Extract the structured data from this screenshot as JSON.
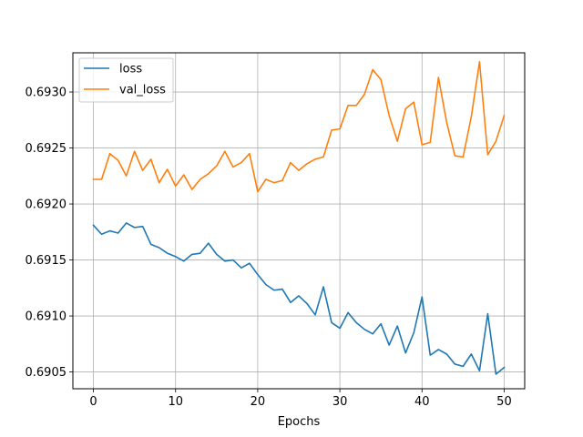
{
  "chart_data": {
    "type": "line",
    "title": "",
    "xlabel": "Epochs",
    "ylabel": "",
    "xlim": [
      -2.5,
      52.5
    ],
    "ylim": [
      0.69035,
      0.69335
    ],
    "grid": true,
    "legend_position": "upper-left",
    "x_ticks": [
      0,
      10,
      20,
      30,
      40,
      50
    ],
    "x_tick_labels": [
      "0",
      "10",
      "20",
      "30",
      "40",
      "50"
    ],
    "y_ticks": [
      0.6905,
      0.691,
      0.6915,
      0.692,
      0.6925,
      0.693
    ],
    "y_tick_labels": [
      "0.6905",
      "0.6910",
      "0.6915",
      "0.6920",
      "0.6925",
      "0.6930"
    ],
    "x": [
      0,
      1,
      2,
      3,
      4,
      5,
      6,
      7,
      8,
      9,
      10,
      11,
      12,
      13,
      14,
      15,
      16,
      17,
      18,
      19,
      20,
      21,
      22,
      23,
      24,
      25,
      26,
      27,
      28,
      29,
      30,
      31,
      32,
      33,
      34,
      35,
      36,
      37,
      38,
      39,
      40,
      41,
      42,
      43,
      44,
      45,
      46,
      47,
      48,
      49,
      50
    ],
    "series": [
      {
        "name": "loss",
        "color": "#1f77b4",
        "values": [
          0.69181,
          0.69173,
          0.69176,
          0.69174,
          0.69183,
          0.69179,
          0.6918,
          0.69164,
          0.69161,
          0.69156,
          0.69153,
          0.69149,
          0.69155,
          0.69156,
          0.69165,
          0.69155,
          0.69149,
          0.6915,
          0.69143,
          0.69147,
          0.69137,
          0.69128,
          0.69123,
          0.69124,
          0.69112,
          0.69118,
          0.69111,
          0.69101,
          0.69126,
          0.69094,
          0.69089,
          0.69103,
          0.69094,
          0.69088,
          0.69084,
          0.69093,
          0.69074,
          0.69091,
          0.69067,
          0.69085,
          0.69117,
          0.69065,
          0.6907,
          0.69066,
          0.69057,
          0.69055,
          0.69066,
          0.69051,
          0.69102,
          0.69048,
          0.69054
        ]
      },
      {
        "name": "val_loss",
        "color": "#ff7f0e",
        "values": [
          0.69222,
          0.69222,
          0.69245,
          0.69239,
          0.69225,
          0.69247,
          0.6923,
          0.6924,
          0.69219,
          0.69231,
          0.69216,
          0.69226,
          0.69213,
          0.69222,
          0.69227,
          0.69234,
          0.69247,
          0.69233,
          0.69237,
          0.69245,
          0.69211,
          0.69222,
          0.69219,
          0.69221,
          0.69237,
          0.6923,
          0.69236,
          0.6924,
          0.69242,
          0.69266,
          0.69267,
          0.69288,
          0.69288,
          0.69298,
          0.6932,
          0.69311,
          0.69279,
          0.69256,
          0.69285,
          0.69291,
          0.69253,
          0.69255,
          0.69313,
          0.69273,
          0.69243,
          0.69242,
          0.69278,
          0.69327,
          0.69244,
          0.69256,
          0.69279
        ]
      }
    ]
  }
}
